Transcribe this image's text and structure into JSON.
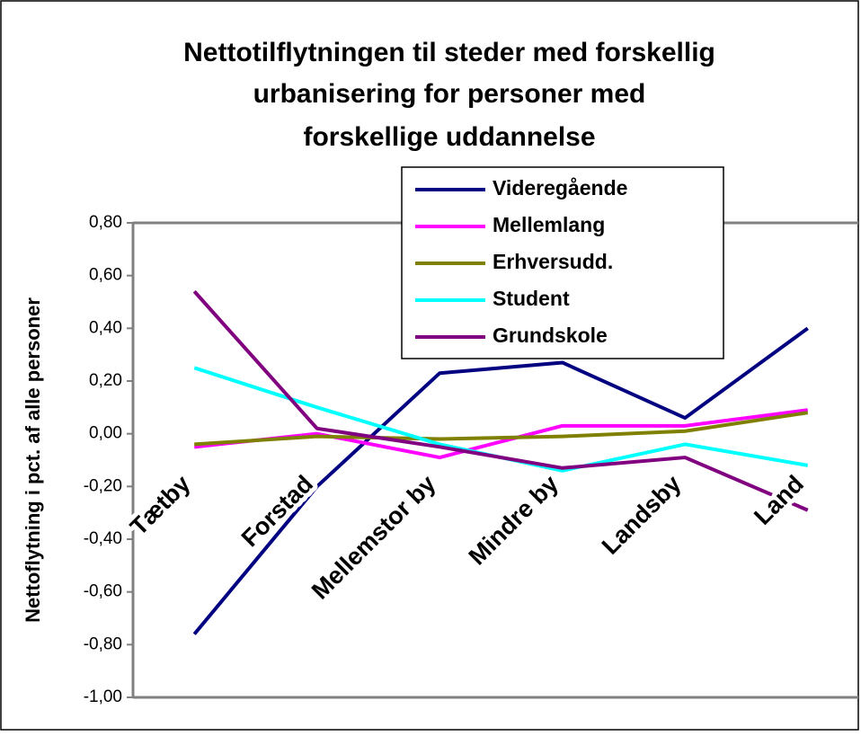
{
  "chart_data": {
    "type": "line",
    "title": [
      "Nettotilflytningen til steder med forskellig",
      "urbanisering for personer med",
      "forskellige uddannelse"
    ],
    "ylabel": "Nettoflytning i pct. af alle personer",
    "categories": [
      "Tætby",
      "Forstad",
      "Mellemstor by",
      "Mindre by",
      "Landsby",
      "Land"
    ],
    "series": [
      {
        "name": "Videregående",
        "color": "#000080",
        "values": [
          -0.76,
          -0.2,
          0.23,
          0.27,
          0.06,
          0.4
        ]
      },
      {
        "name": "Mellemlang",
        "color": "#ff00ff",
        "values": [
          -0.05,
          0.0,
          -0.09,
          0.03,
          0.03,
          0.09
        ]
      },
      {
        "name": "Erhversudd.",
        "color": "#808000",
        "values": [
          -0.04,
          -0.01,
          -0.02,
          -0.01,
          0.01,
          0.08
        ]
      },
      {
        "name": "Student",
        "color": "#00ffff",
        "values": [
          0.25,
          0.1,
          -0.04,
          -0.14,
          -0.04,
          -0.12
        ]
      },
      {
        "name": "Grundskole",
        "color": "#800080",
        "values": [
          0.54,
          0.02,
          -0.05,
          -0.13,
          -0.09,
          -0.29
        ]
      }
    ],
    "ylim": [
      -1.0,
      0.8
    ],
    "yticks": [
      {
        "value": 0.8,
        "label": "0,80"
      },
      {
        "value": 0.6,
        "label": "0,60"
      },
      {
        "value": 0.4,
        "label": "0,40"
      },
      {
        "value": 0.2,
        "label": "0,20"
      },
      {
        "value": 0.0,
        "label": "0,00"
      },
      {
        "value": -0.2,
        "label": "-0,20"
      },
      {
        "value": -0.4,
        "label": "-0,40"
      },
      {
        "value": -0.6,
        "label": "-0,60"
      },
      {
        "value": -0.8,
        "label": "-0,80"
      },
      {
        "value": -1.0,
        "label": "-1,00"
      }
    ],
    "legend": "top-right"
  }
}
